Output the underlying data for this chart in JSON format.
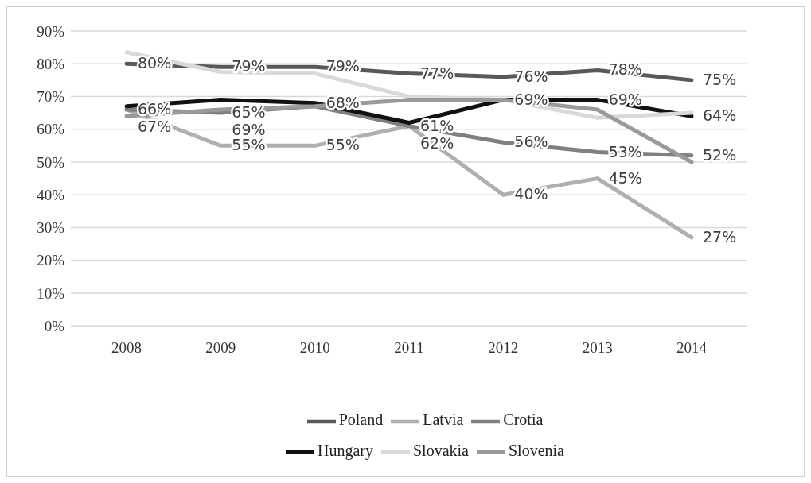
{
  "chart_data": {
    "type": "line",
    "categories": [
      "2008",
      "2009",
      "2010",
      "2011",
      "2012",
      "2013",
      "2014"
    ],
    "series": [
      {
        "name": "Poland",
        "color": "#595959",
        "values": [
          80,
          79,
          79,
          77,
          76,
          78,
          75
        ],
        "value_labels": [
          "80%",
          "79%",
          "79%",
          "77%",
          "76%",
          "78%",
          "75%"
        ]
      },
      {
        "name": "Latvia",
        "color": "#afafaf",
        "values": [
          66,
          55,
          55,
          61,
          40,
          45,
          27
        ],
        "value_labels": [
          "66%",
          "55%",
          "55%",
          "61%",
          "40%",
          "45%",
          "27%"
        ]
      },
      {
        "name": "Crotia",
        "color": "#808080",
        "values": [
          66,
          65,
          67,
          61,
          56,
          53,
          52
        ],
        "value_labels": [
          null,
          "65%",
          null,
          null,
          "56%",
          "53%",
          "52%"
        ]
      },
      {
        "name": "Hungary",
        "color": "#111111",
        "values": [
          67,
          69,
          68,
          62,
          69,
          69,
          64
        ],
        "value_labels": [
          "67%",
          "69%",
          "68%",
          "62%",
          "69%",
          "69%",
          "64%"
        ]
      },
      {
        "name": "Slovakia",
        "color": "#d9d9d9",
        "values": [
          83.5,
          77.5,
          77,
          70,
          69,
          63.5,
          65
        ]
      },
      {
        "name": "Slovenia",
        "color": "#9a9a9a",
        "values": [
          64,
          66,
          67,
          69,
          69,
          66,
          50
        ]
      }
    ],
    "ylim": [
      0,
      90
    ],
    "yticks": [
      {
        "value": 0,
        "label": "0%"
      },
      {
        "value": 10,
        "label": "10%"
      },
      {
        "value": 20,
        "label": "20%"
      },
      {
        "value": 30,
        "label": "30%"
      },
      {
        "value": 40,
        "label": "40%"
      },
      {
        "value": 50,
        "label": "50%"
      },
      {
        "value": 60,
        "label": "60%"
      },
      {
        "value": 70,
        "label": "70%"
      },
      {
        "value": 80,
        "label": "80%"
      },
      {
        "value": 90,
        "label": "90%"
      }
    ],
    "grid": "y",
    "legend": "bottom",
    "marker": "none",
    "line_style": "solid"
  }
}
